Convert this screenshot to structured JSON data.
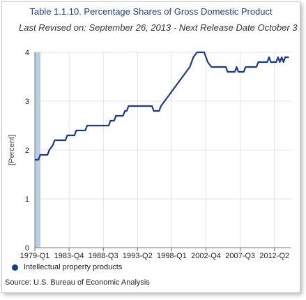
{
  "chart_data": {
    "type": "line",
    "title": "Table 1.1.10. Percentage Shares of Gross Domestic Product",
    "subtitle": "Last Revised on: September 26, 2013 - Next Release Date October 3",
    "xlabel": "",
    "ylabel": "[Percent]",
    "ylim": [
      0,
      4
    ],
    "yticks": [
      "0",
      "1",
      "2",
      "3",
      "4"
    ],
    "xtick_labels": [
      "1979-Q1",
      "1983-Q4",
      "1988-Q3",
      "1993-Q2",
      "1998-Q1",
      "2002-Q4",
      "2007-Q3",
      "2012-Q2"
    ],
    "grid": true,
    "legend_position": "bottom-left",
    "series": [
      {
        "name": "Intellectual property products",
        "color": "#1a3a8f",
        "points": [
          [
            "1979-Q1",
            1.8
          ],
          [
            "1979-Q3",
            1.8
          ],
          [
            "1979-Q4",
            1.9
          ],
          [
            "1980-Q4",
            1.9
          ],
          [
            "1981-Q1",
            2.0
          ],
          [
            "1981-Q3",
            2.1
          ],
          [
            "1981-Q4",
            2.2
          ],
          [
            "1983-Q2",
            2.2
          ],
          [
            "1983-Q3",
            2.3
          ],
          [
            "1984-Q3",
            2.3
          ],
          [
            "1984-Q4",
            2.4
          ],
          [
            "1986-Q1",
            2.4
          ],
          [
            "1986-Q2",
            2.5
          ],
          [
            "1989-Q2",
            2.5
          ],
          [
            "1989-Q3",
            2.6
          ],
          [
            "1990-Q1",
            2.6
          ],
          [
            "1990-Q2",
            2.7
          ],
          [
            "1991-Q2",
            2.7
          ],
          [
            "1991-Q3",
            2.8
          ],
          [
            "1991-Q4",
            2.8
          ],
          [
            "1992-Q1",
            2.9
          ],
          [
            "1995-Q2",
            2.9
          ],
          [
            "1995-Q3",
            2.8
          ],
          [
            "1996-Q2",
            2.8
          ],
          [
            "1996-Q3",
            2.9
          ],
          [
            "1997-Q1",
            3.0
          ],
          [
            "1997-Q3",
            3.1
          ],
          [
            "1998-Q1",
            3.2
          ],
          [
            "1998-Q3",
            3.3
          ],
          [
            "1999-Q1",
            3.4
          ],
          [
            "1999-Q3",
            3.5
          ],
          [
            "2000-Q1",
            3.6
          ],
          [
            "2000-Q3",
            3.7
          ],
          [
            "2001-Q1",
            3.9
          ],
          [
            "2001-Q3",
            4.0
          ],
          [
            "2002-Q3",
            4.0
          ],
          [
            "2002-Q4",
            3.9
          ],
          [
            "2003-Q1",
            3.8
          ],
          [
            "2003-Q3",
            3.7
          ],
          [
            "2005-Q3",
            3.7
          ],
          [
            "2005-Q4",
            3.6
          ],
          [
            "2006-Q4",
            3.6
          ],
          [
            "2007-Q1",
            3.7
          ],
          [
            "2007-Q2",
            3.6
          ],
          [
            "2008-Q1",
            3.6
          ],
          [
            "2008-Q2",
            3.7
          ],
          [
            "2009-Q4",
            3.7
          ],
          [
            "2010-Q1",
            3.8
          ],
          [
            "2011-Q2",
            3.8
          ],
          [
            "2011-Q3",
            3.9
          ],
          [
            "2011-Q4",
            3.8
          ],
          [
            "2012-Q3",
            3.8
          ],
          [
            "2012-Q4",
            3.9
          ],
          [
            "2013-Q1",
            3.8
          ],
          [
            "2013-Q2",
            3.9
          ],
          [
            "2013-Q3",
            3.8
          ],
          [
            "2013-Q4",
            3.9
          ],
          [
            "2014-Q2",
            3.9
          ]
        ]
      }
    ]
  },
  "source": "Source: U.S. Bureau of Economic Analysis"
}
